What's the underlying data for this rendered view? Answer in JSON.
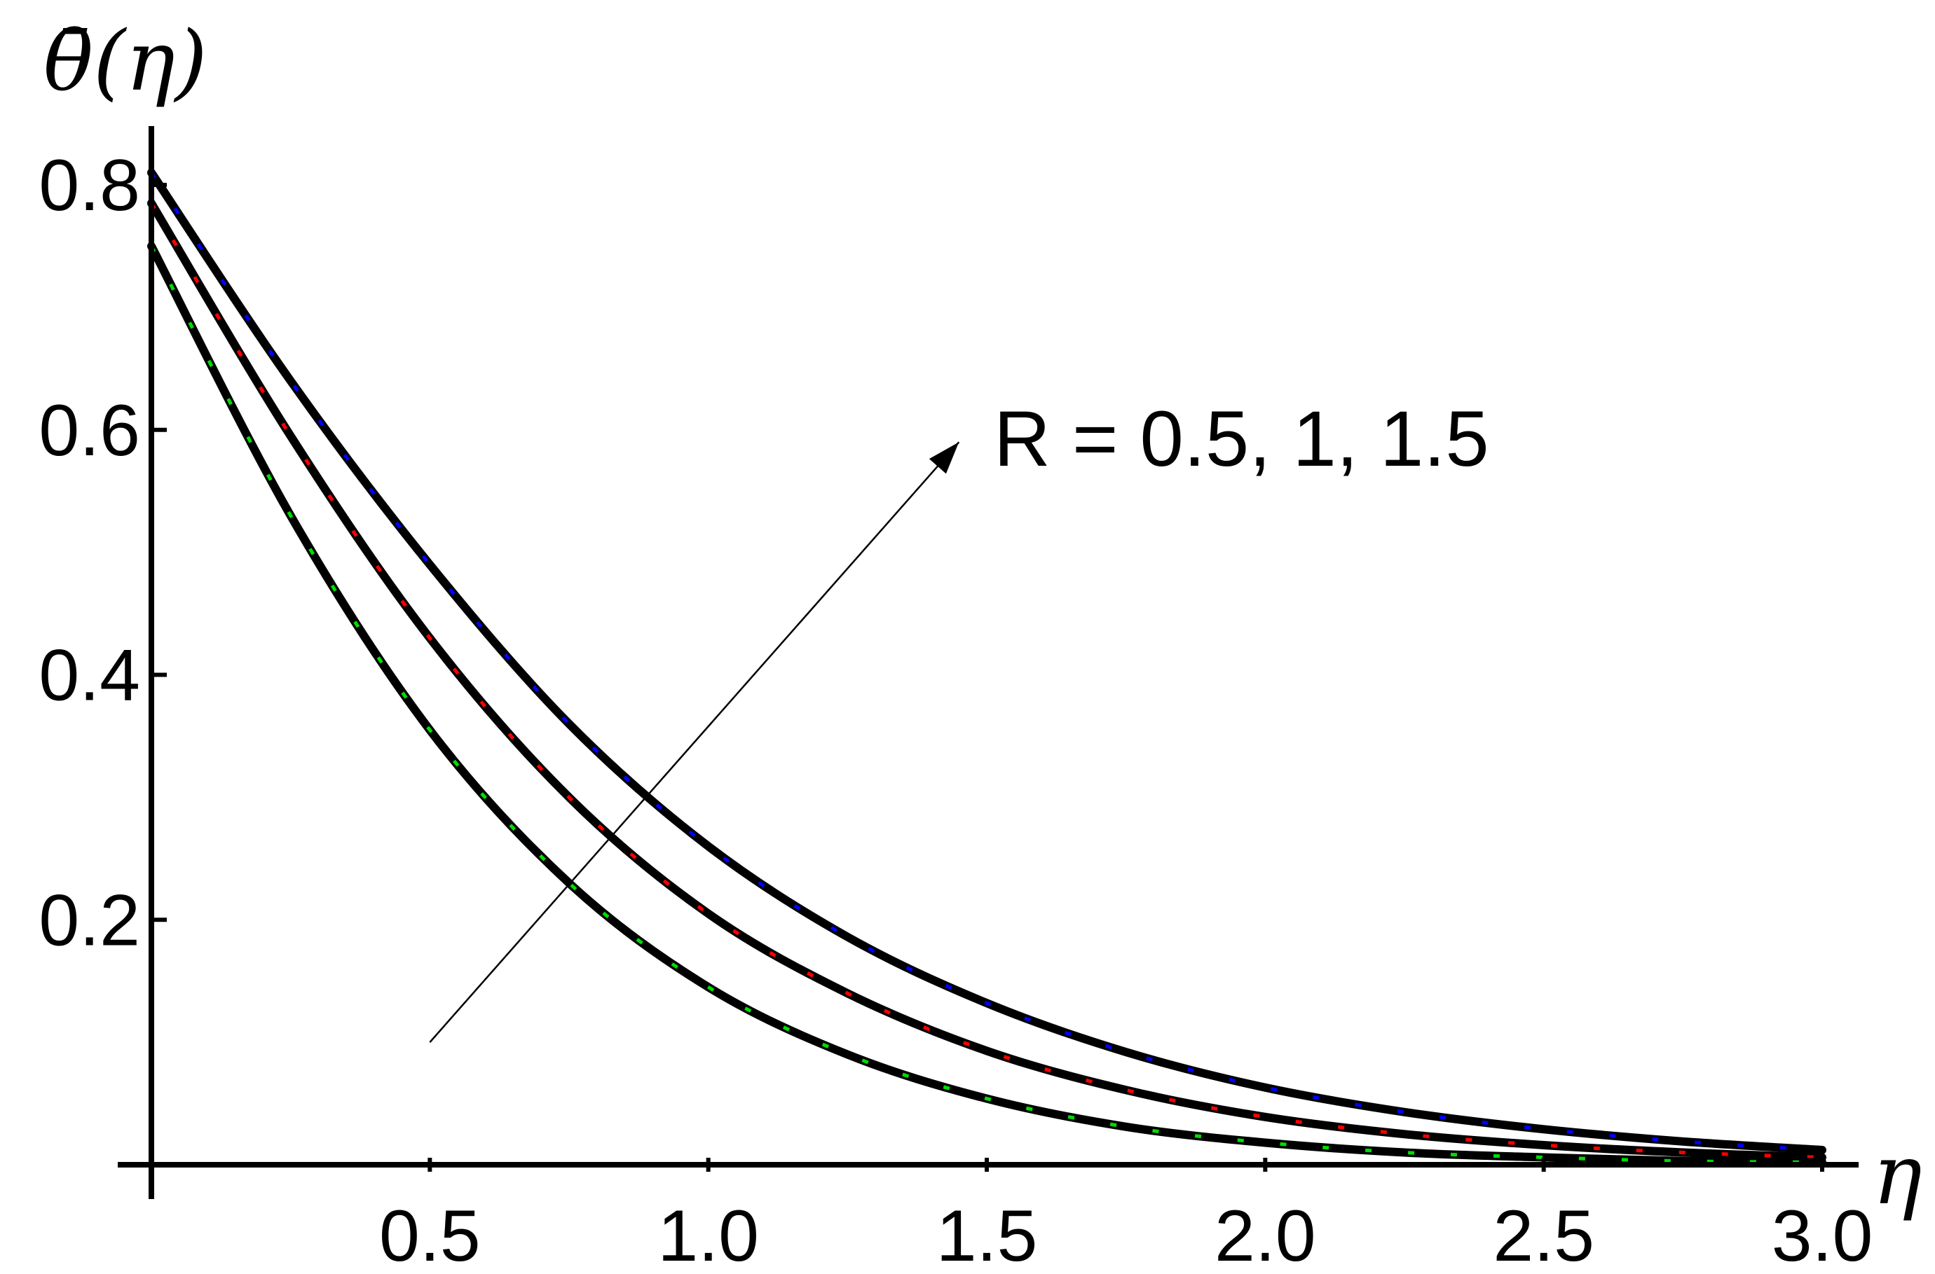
{
  "chart_data": {
    "type": "line",
    "title": "",
    "xlabel": "η",
    "ylabel": "θ̄(η)",
    "xlim": [
      0,
      3.0
    ],
    "ylim": [
      0,
      0.85
    ],
    "x_ticks": [
      0.5,
      1.0,
      1.5,
      2.0,
      2.5,
      3.0
    ],
    "x_tick_labels": [
      "0.5",
      "1.0",
      "1.5",
      "2.0",
      "2.5",
      "3.0"
    ],
    "y_ticks": [
      0.2,
      0.4,
      0.6,
      0.8
    ],
    "y_tick_labels": [
      "0.2",
      "0.4",
      "0.6",
      "0.8"
    ],
    "grid": false,
    "annotation": {
      "text": "R = 0.5, 1, 1.5",
      "arrow_from": [
        0.5,
        0.1
      ],
      "arrow_to": [
        1.45,
        0.59
      ]
    },
    "series": [
      {
        "color": "#0000ff",
        "x": [
          0,
          0.25,
          0.5,
          0.75,
          1.0,
          1.25,
          1.5,
          1.75,
          2.0,
          2.25,
          2.5,
          2.75,
          3.0
        ],
        "values": [
          0.81,
          0.64,
          0.49,
          0.36,
          0.26,
          0.186,
          0.132,
          0.092,
          0.063,
          0.043,
          0.029,
          0.019,
          0.012
        ]
      },
      {
        "color": "#ff0000",
        "x": [
          0,
          0.25,
          0.5,
          0.75,
          1.0,
          1.25,
          1.5,
          1.75,
          2.0,
          2.25,
          2.5,
          2.75,
          3.0
        ],
        "values": [
          0.785,
          0.595,
          0.43,
          0.3,
          0.205,
          0.14,
          0.093,
          0.061,
          0.039,
          0.025,
          0.016,
          0.01,
          0.006
        ]
      },
      {
        "color": "#00dd00",
        "x": [
          0,
          0.25,
          0.5,
          0.75,
          1.0,
          1.25,
          1.5,
          1.75,
          2.0,
          2.25,
          2.5,
          2.75,
          3.0
        ],
        "values": [
          0.75,
          0.53,
          0.355,
          0.23,
          0.145,
          0.09,
          0.054,
          0.031,
          0.018,
          0.01,
          0.006,
          0.003,
          0.002
        ]
      }
    ]
  }
}
